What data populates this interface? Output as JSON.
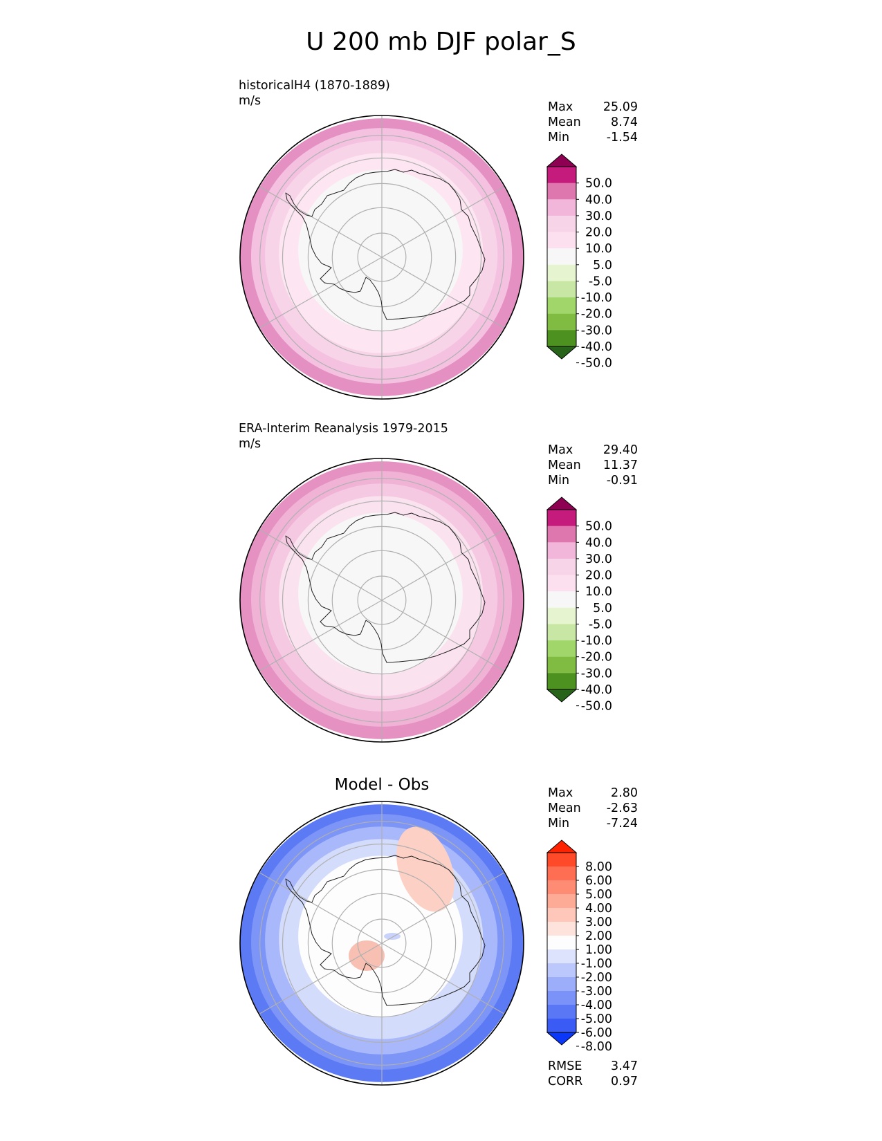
{
  "title": "U 200 mb DJF polar_S",
  "panels": [
    {
      "title_lines": [
        "historicalH4 (1870-1889)",
        "m/s"
      ],
      "center_title": "",
      "stats": [
        {
          "label": "Max",
          "value": "25.09"
        },
        {
          "label": "Mean",
          "value": "8.74"
        },
        {
          "label": "Min",
          "value": "-1.54"
        }
      ],
      "colorbar": {
        "labels": [
          "50.0",
          "40.0",
          "30.0",
          "20.0",
          "10.0",
          "5.0",
          "-5.0",
          "-10.0",
          "-20.0",
          "-30.0",
          "-40.0",
          "-50.0"
        ],
        "colors": [
          "#8e0152",
          "#c51b7d",
          "#de77ae",
          "#f1b6da",
          "#f7d4e8",
          "#fde0ef",
          "#f7f7f7",
          "#e6f5d0",
          "#c9e7a4",
          "#a1d76a",
          "#7fbc41",
          "#4d9221",
          "#276419"
        ]
      },
      "map": {
        "rings": [
          "#e490c2",
          "#f4c2e0",
          "#f7d4e8",
          "#fde6f1",
          "#f7f7f7"
        ],
        "anomalies": []
      }
    },
    {
      "title_lines": [
        "ERA-Interim Reanalysis 1979-2015",
        "m/s"
      ],
      "center_title": "",
      "stats": [
        {
          "label": "Max",
          "value": "29.40"
        },
        {
          "label": "Mean",
          "value": "11.37"
        },
        {
          "label": "Min",
          "value": "-0.91"
        }
      ],
      "colorbar": {
        "labels": [
          "50.0",
          "40.0",
          "30.0",
          "20.0",
          "10.0",
          "5.0",
          "-5.0",
          "-10.0",
          "-20.0",
          "-30.0",
          "-40.0",
          "-50.0"
        ],
        "colors": [
          "#8e0152",
          "#c51b7d",
          "#de77ae",
          "#f1b6da",
          "#f7d4e8",
          "#fde0ef",
          "#f7f7f7",
          "#e6f5d0",
          "#c9e7a4",
          "#a1d76a",
          "#7fbc41",
          "#4d9221",
          "#276419"
        ]
      },
      "map": {
        "rings": [
          "#e592c3",
          "#f0b3d6",
          "#f5c9e2",
          "#fbe2ef",
          "#f7f7f7"
        ],
        "anomalies": []
      }
    },
    {
      "title_lines": [],
      "center_title": "Model - Obs",
      "stats": [
        {
          "label": "Max",
          "value": "2.80"
        },
        {
          "label": "Mean",
          "value": "-2.63"
        },
        {
          "label": "Min",
          "value": "-7.24"
        }
      ],
      "colorbar": {
        "labels": [
          "8.00",
          "6.00",
          "5.00",
          "4.00",
          "3.00",
          "2.00",
          "1.00",
          "-1.00",
          "-2.00",
          "-3.00",
          "-4.00",
          "-5.00",
          "-6.00",
          "-8.00"
        ],
        "colors": [
          "#ff2200",
          "#ff4a2a",
          "#fd6e52",
          "#fe8c74",
          "#fdab97",
          "#fec7b9",
          "#fde3dc",
          "#fdfdfd",
          "#dde3fd",
          "#bcc8fc",
          "#9cadfa",
          "#7b92f8",
          "#5a77f6",
          "#3a5cf4",
          "#0a37f8"
        ]
      },
      "map": {
        "rings": [
          "#5c7af4",
          "#7d95f6",
          "#a9b8fa",
          "#d4dcfc",
          "#fdfdfd"
        ],
        "anomalies": [
          "#fcd0c4",
          "#f8c0b2"
        ]
      },
      "footer_stats": [
        {
          "label": "RMSE",
          "value": "3.47"
        },
        {
          "label": "CORR",
          "value": "0.97"
        }
      ]
    }
  ]
}
